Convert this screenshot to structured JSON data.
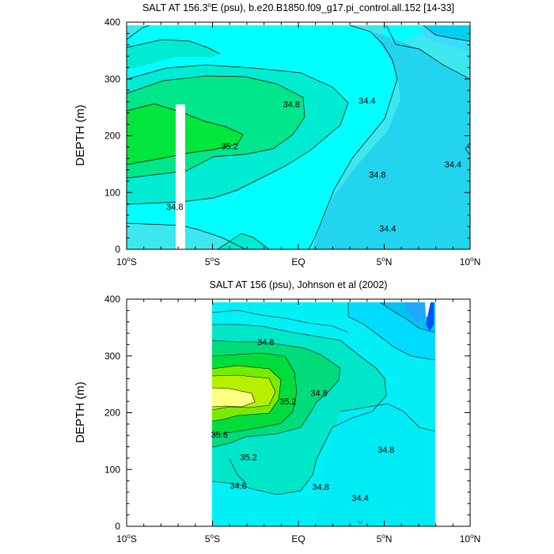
{
  "chart_data": [
    {
      "type": "contour",
      "title": "SALT AT 156.3°E (psu), b.e20.B1850.f09_g17.pi_control.all.152 [14-33]",
      "title_main": "SALT AT 156.3",
      "title_deg": "o",
      "title_rest": "E (psu), b.e20.B1850.f09_g17.pi_control.all.152 [14-33]",
      "ylabel": "DEPTH (m)",
      "xlim": [
        -10,
        10
      ],
      "ylim": [
        400,
        0
      ],
      "y_reversed": true,
      "x_ticks": [
        {
          "value": -10,
          "num": "10",
          "deg": "o",
          "hemi": "S"
        },
        {
          "value": -5,
          "num": "5",
          "deg": "o",
          "hemi": "S"
        },
        {
          "value": 0,
          "num": "EQ",
          "deg": "",
          "hemi": ""
        },
        {
          "value": 5,
          "num": "5",
          "deg": "o",
          "hemi": "N"
        },
        {
          "value": 10,
          "num": "10",
          "deg": "o",
          "hemi": "N"
        }
      ],
      "y_ticks": [
        {
          "value": 0,
          "label": "0"
        },
        {
          "value": 100,
          "label": "100"
        },
        {
          "value": 200,
          "label": "200"
        },
        {
          "value": 300,
          "label": "300"
        },
        {
          "value": 400,
          "label": "400"
        }
      ],
      "contour_labels": [
        {
          "text": "34.8",
          "x": -7.2,
          "y": 75
        },
        {
          "text": "35.2",
          "x": -4.0,
          "y": 182
        },
        {
          "text": "34.8",
          "x": -0.4,
          "y": 256
        },
        {
          "text": "34.4",
          "x": 4.0,
          "y": 262
        },
        {
          "text": "34.8",
          "x": 4.6,
          "y": 132
        },
        {
          "text": "34.4",
          "x": 5.2,
          "y": 37
        },
        {
          "text": "34.4",
          "x": 9.0,
          "y": 150
        }
      ]
    },
    {
      "type": "contour",
      "title": "SALT AT 156 (psu), Johnson et al (2002)",
      "ylabel": "DEPTH (m)",
      "xlim": [
        -10,
        10
      ],
      "ylim": [
        400,
        0
      ],
      "y_reversed": true,
      "data_x_range": [
        -5,
        8
      ],
      "x_ticks": [
        {
          "value": -10,
          "num": "10",
          "deg": "o",
          "hemi": "S"
        },
        {
          "value": -5,
          "num": "5",
          "deg": "o",
          "hemi": "S"
        },
        {
          "value": 0,
          "num": "EQ",
          "deg": "",
          "hemi": ""
        },
        {
          "value": 5,
          "num": "5",
          "deg": "o",
          "hemi": "N"
        },
        {
          "value": 10,
          "num": "10",
          "deg": "o",
          "hemi": "N"
        }
      ],
      "y_ticks": [
        {
          "value": 0,
          "label": "0"
        },
        {
          "value": 100,
          "label": "100"
        },
        {
          "value": 200,
          "label": "200"
        },
        {
          "value": 300,
          "label": "300"
        },
        {
          "value": 400,
          "label": "400"
        }
      ],
      "contour_labels": [
        {
          "text": "34.8",
          "x": -3.5,
          "y": 72
        },
        {
          "text": "35.2",
          "x": -2.9,
          "y": 122
        },
        {
          "text": "35.6",
          "x": -4.6,
          "y": 162
        },
        {
          "text": "35.2",
          "x": -0.6,
          "y": 220
        },
        {
          "text": "34.8",
          "x": 1.3,
          "y": 70
        },
        {
          "text": "34.8",
          "x": 1.2,
          "y": 235
        },
        {
          "text": "34.4",
          "x": 3.6,
          "y": 50
        },
        {
          "text": "34.8",
          "x": 5.1,
          "y": 135
        },
        {
          "text": "34.8",
          "x": -1.9,
          "y": 325
        }
      ]
    }
  ]
}
